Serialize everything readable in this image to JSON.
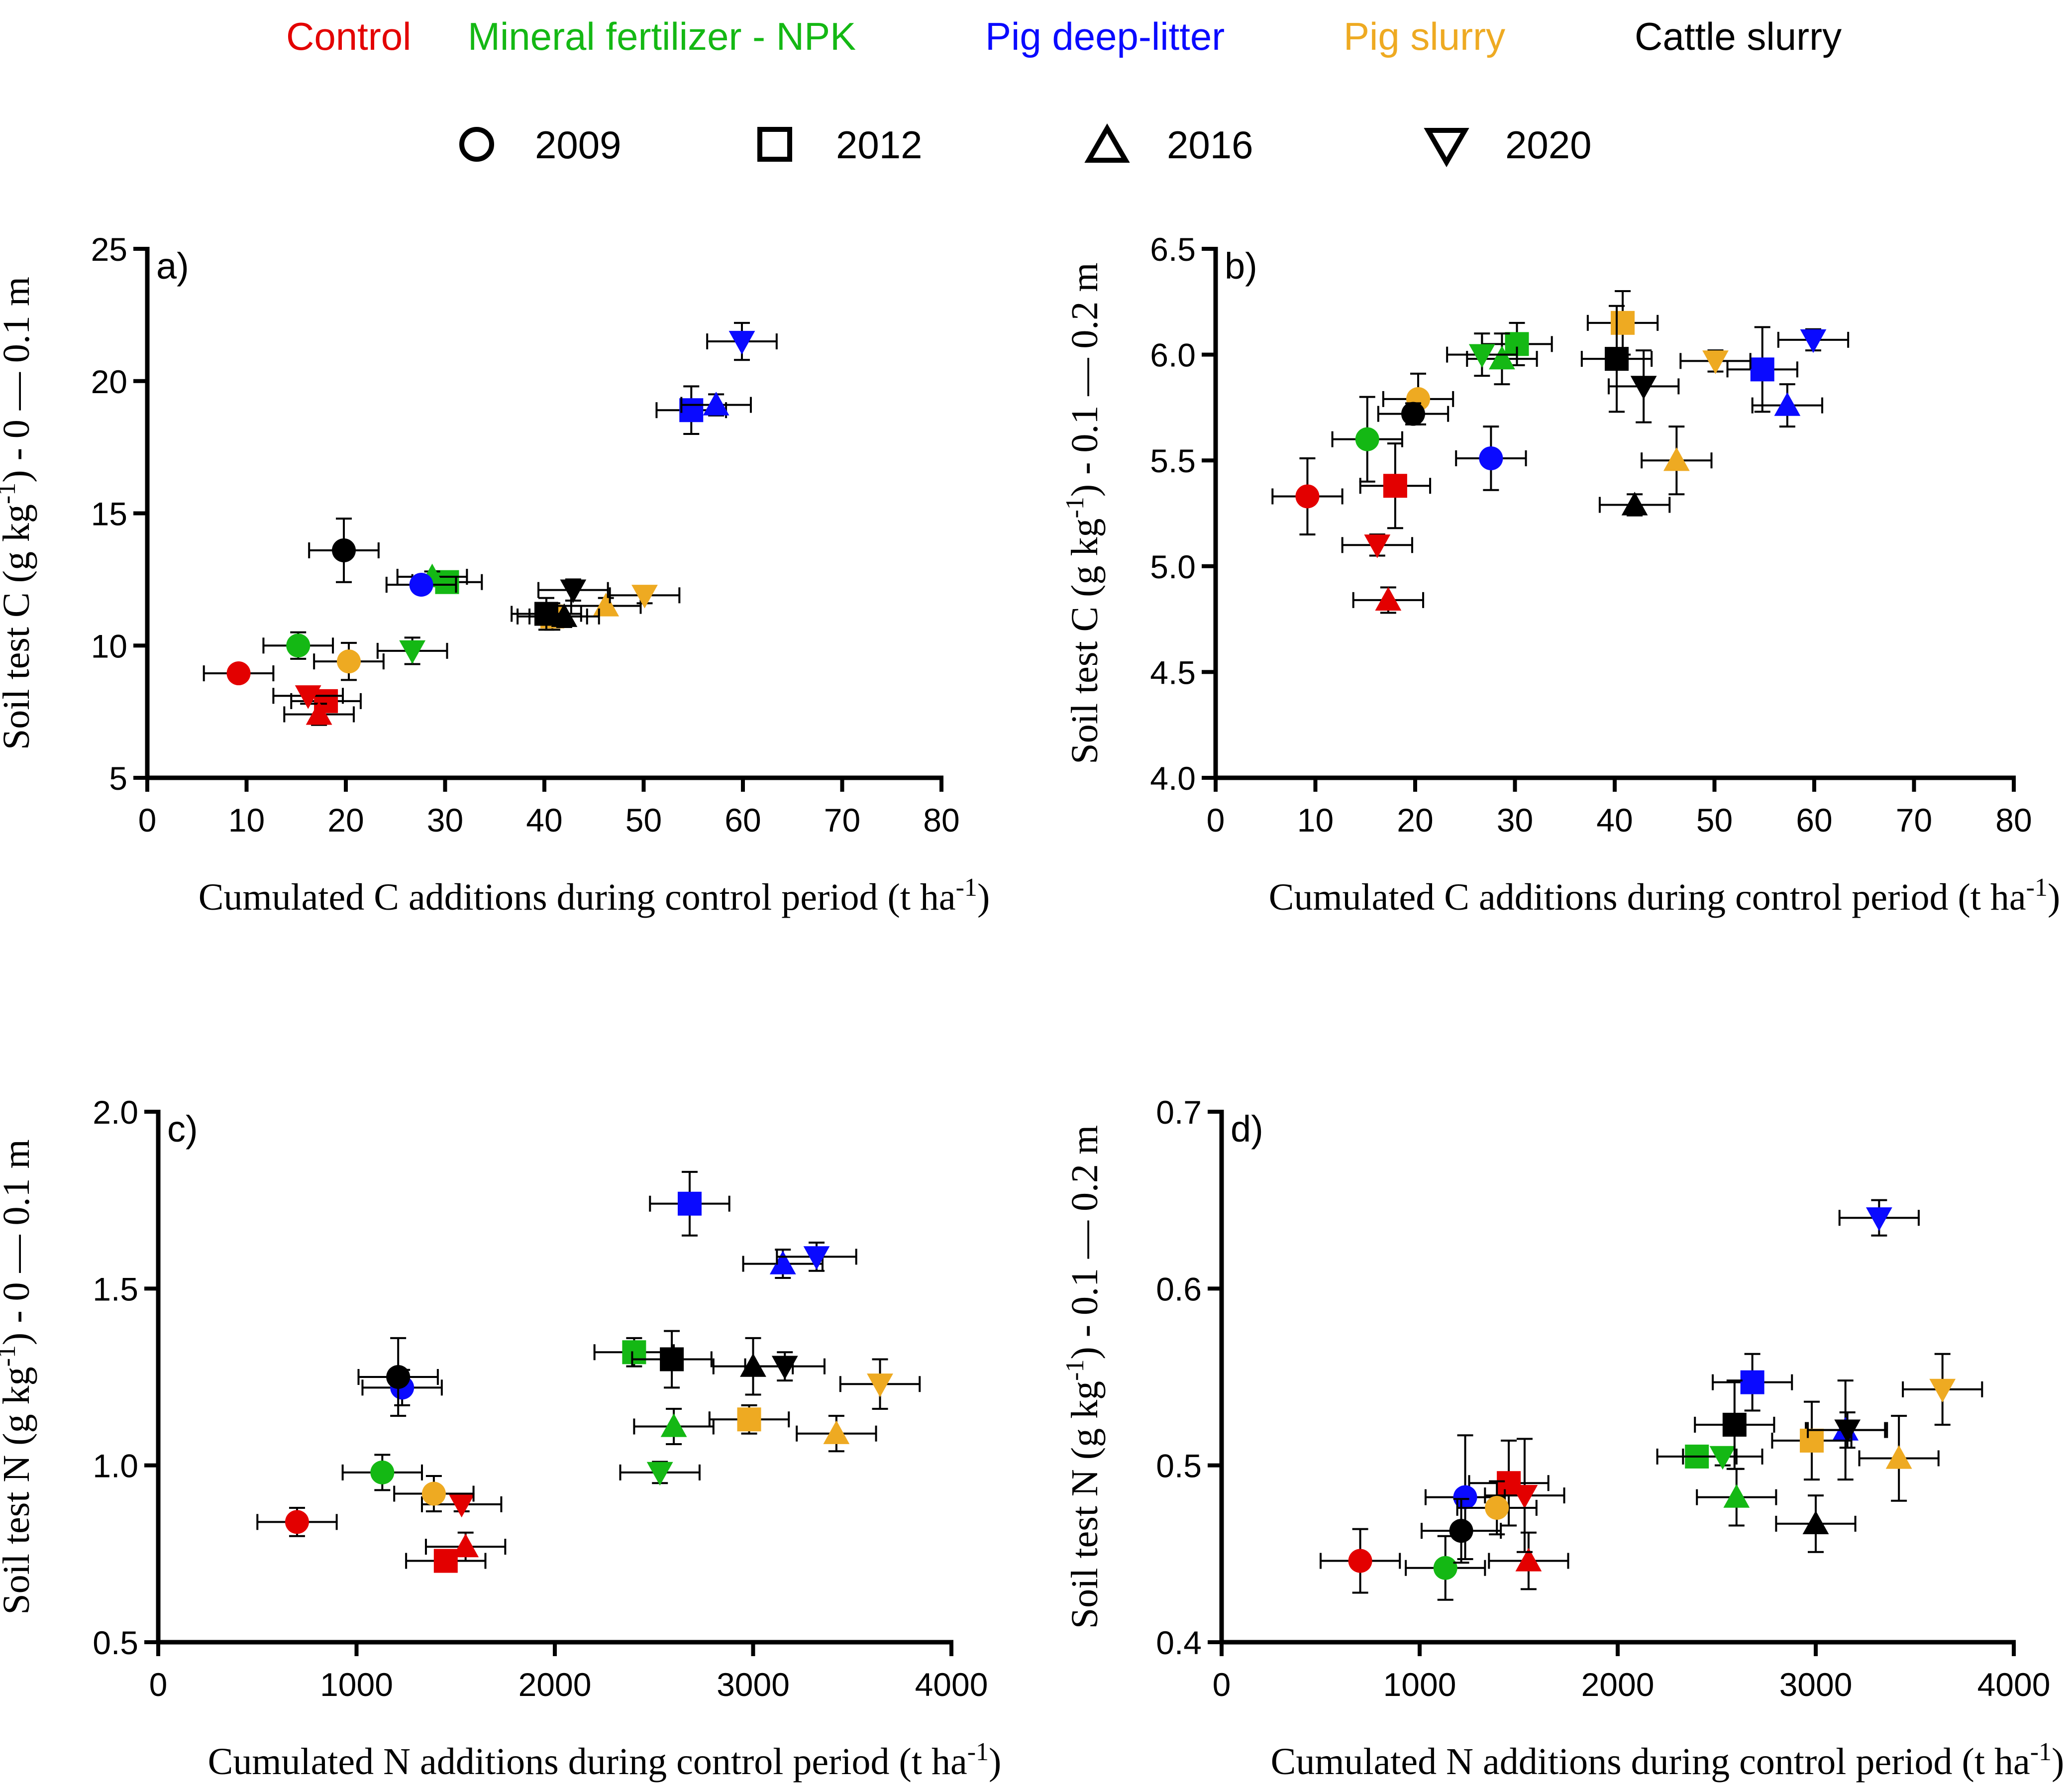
{
  "legend": {
    "treatments": [
      {
        "key": "control",
        "label": "Control",
        "color": "#e30000"
      },
      {
        "key": "npk",
        "label": "Mineral fertilizer - NPK",
        "color": "#14b814"
      },
      {
        "key": "pdl",
        "label": "Pig deep-litter",
        "color": "#0a0aff"
      },
      {
        "key": "ps",
        "label": "Pig slurry",
        "color": "#eeaa22"
      },
      {
        "key": "cs",
        "label": "Cattle slurry",
        "color": "#000000"
      }
    ],
    "years": [
      {
        "label": "2009",
        "marker": "circle-icon"
      },
      {
        "label": "2012",
        "marker": "square-icon"
      },
      {
        "label": "2016",
        "marker": "triangle-up-icon"
      },
      {
        "label": "2020",
        "marker": "triangle-down-icon"
      }
    ]
  },
  "chart_data": [
    {
      "panel": "a)",
      "type": "scatter",
      "xlabel": "Cumulated C additions during control period (t ha⁻¹)",
      "ylabel": "Soil test C (g kg⁻¹) - 0 — 0.1 m",
      "xlim": [
        0,
        80
      ],
      "ylim": [
        5,
        25
      ],
      "xticks": [
        0,
        10,
        20,
        30,
        40,
        50,
        60,
        70,
        80
      ],
      "yticks": [
        5,
        10,
        15,
        20,
        25
      ],
      "ytick_labels": [
        "5",
        "10",
        "15",
        "20",
        "25"
      ],
      "points": [
        {
          "t": "control",
          "y": "2009",
          "x": 9.2,
          "v": 8.95,
          "xe": 3.5,
          "ye": 0.2
        },
        {
          "t": "control",
          "y": "2012",
          "x": 18.0,
          "v": 7.9,
          "xe": 3.5,
          "ye": 0.3
        },
        {
          "t": "control",
          "y": "2016",
          "x": 17.3,
          "v": 7.4,
          "xe": 3.5,
          "ye": 0.4
        },
        {
          "t": "control",
          "y": "2020",
          "x": 16.2,
          "v": 8.1,
          "xe": 3.5,
          "ye": 0.3
        },
        {
          "t": "npk",
          "y": "2009",
          "x": 15.2,
          "v": 10.0,
          "xe": 3.5,
          "ye": 0.5
        },
        {
          "t": "npk",
          "y": "2012",
          "x": 30.2,
          "v": 12.4,
          "xe": 3.5,
          "ye": 0.3
        },
        {
          "t": "npk",
          "y": "2016",
          "x": 28.7,
          "v": 12.6,
          "xe": 3.5,
          "ye": 0.2
        },
        {
          "t": "npk",
          "y": "2020",
          "x": 26.7,
          "v": 9.8,
          "xe": 3.5,
          "ye": 0.5
        },
        {
          "t": "pdl",
          "y": "2009",
          "x": 27.6,
          "v": 12.3,
          "xe": 3.5,
          "ye": 0.3
        },
        {
          "t": "pdl",
          "y": "2012",
          "x": 54.8,
          "v": 18.9,
          "xe": 3.5,
          "ye": 0.9
        },
        {
          "t": "pdl",
          "y": "2016",
          "x": 57.3,
          "v": 19.1,
          "xe": 3.5,
          "ye": 0.4
        },
        {
          "t": "pdl",
          "y": "2020",
          "x": 59.9,
          "v": 21.5,
          "xe": 3.5,
          "ye": 0.7
        },
        {
          "t": "ps",
          "y": "2009",
          "x": 20.3,
          "v": 9.4,
          "xe": 3.5,
          "ye": 0.7
        },
        {
          "t": "ps",
          "y": "2012",
          "x": 40.8,
          "v": 11.1,
          "xe": 3.5,
          "ye": 0.5
        },
        {
          "t": "ps",
          "y": "2016",
          "x": 46.2,
          "v": 11.5,
          "xe": 3.5,
          "ye": 0.3
        },
        {
          "t": "ps",
          "y": "2020",
          "x": 50.1,
          "v": 11.9,
          "xe": 3.5,
          "ye": 0.3
        },
        {
          "t": "cs",
          "y": "2009",
          "x": 19.8,
          "v": 13.6,
          "xe": 3.5,
          "ye": 1.2
        },
        {
          "t": "cs",
          "y": "2012",
          "x": 40.2,
          "v": 11.2,
          "xe": 3.5,
          "ye": 0.6
        },
        {
          "t": "cs",
          "y": "2016",
          "x": 42.0,
          "v": 11.1,
          "xe": 3.5,
          "ye": 0.4
        },
        {
          "t": "cs",
          "y": "2020",
          "x": 42.9,
          "v": 12.1,
          "xe": 3.5,
          "ye": 0.4
        }
      ]
    },
    {
      "panel": "b)",
      "type": "scatter",
      "xlabel": "Cumulated C additions during control period (t ha⁻¹)",
      "ylabel": "Soil test C (g kg⁻¹) - 0.1 — 0.2 m",
      "xlim": [
        0,
        80
      ],
      "ylim": [
        4.0,
        6.5
      ],
      "xticks": [
        0,
        10,
        20,
        30,
        40,
        50,
        60,
        70,
        80
      ],
      "yticks": [
        4.0,
        4.5,
        5.0,
        5.5,
        6.0,
        6.5
      ],
      "ytick_labels": [
        "4.0",
        "4.5",
        "5.0",
        "5.5",
        "6.0",
        "6.5"
      ],
      "points": [
        {
          "t": "control",
          "y": "2009",
          "x": 9.2,
          "v": 5.33,
          "xe": 3.5,
          "ye": 0.18
        },
        {
          "t": "control",
          "y": "2012",
          "x": 18.0,
          "v": 5.38,
          "xe": 3.5,
          "ye": 0.2
        },
        {
          "t": "control",
          "y": "2016",
          "x": 17.3,
          "v": 4.84,
          "xe": 3.5,
          "ye": 0.06
        },
        {
          "t": "control",
          "y": "2020",
          "x": 16.2,
          "v": 5.1,
          "xe": 3.5,
          "ye": 0.05
        },
        {
          "t": "npk",
          "y": "2009",
          "x": 15.2,
          "v": 5.6,
          "xe": 3.5,
          "ye": 0.2
        },
        {
          "t": "npk",
          "y": "2012",
          "x": 30.2,
          "v": 6.05,
          "xe": 3.5,
          "ye": 0.1
        },
        {
          "t": "npk",
          "y": "2016",
          "x": 28.7,
          "v": 5.98,
          "xe": 3.5,
          "ye": 0.12
        },
        {
          "t": "npk",
          "y": "2020",
          "x": 26.7,
          "v": 6.0,
          "xe": 3.5,
          "ye": 0.1
        },
        {
          "t": "pdl",
          "y": "2009",
          "x": 27.6,
          "v": 5.51,
          "xe": 3.5,
          "ye": 0.15
        },
        {
          "t": "pdl",
          "y": "2012",
          "x": 54.8,
          "v": 5.93,
          "xe": 3.5,
          "ye": 0.2
        },
        {
          "t": "pdl",
          "y": "2016",
          "x": 57.3,
          "v": 5.76,
          "xe": 3.5,
          "ye": 0.1
        },
        {
          "t": "pdl",
          "y": "2020",
          "x": 59.9,
          "v": 6.07,
          "xe": 3.5,
          "ye": 0.05
        },
        {
          "t": "ps",
          "y": "2009",
          "x": 20.3,
          "v": 5.79,
          "xe": 3.5,
          "ye": 0.12
        },
        {
          "t": "ps",
          "y": "2012",
          "x": 40.8,
          "v": 6.15,
          "xe": 3.5,
          "ye": 0.15
        },
        {
          "t": "ps",
          "y": "2016",
          "x": 46.2,
          "v": 5.5,
          "xe": 3.5,
          "ye": 0.16
        },
        {
          "t": "ps",
          "y": "2020",
          "x": 50.1,
          "v": 5.97,
          "xe": 3.5,
          "ye": 0.05
        },
        {
          "t": "cs",
          "y": "2009",
          "x": 19.8,
          "v": 5.72,
          "xe": 3.5,
          "ye": 0.05
        },
        {
          "t": "cs",
          "y": "2012",
          "x": 40.2,
          "v": 5.98,
          "xe": 3.5,
          "ye": 0.25
        },
        {
          "t": "cs",
          "y": "2016",
          "x": 42.0,
          "v": 5.29,
          "xe": 3.5,
          "ye": 0.05
        },
        {
          "t": "cs",
          "y": "2020",
          "x": 42.9,
          "v": 5.85,
          "xe": 3.5,
          "ye": 0.17
        }
      ]
    },
    {
      "panel": "c)",
      "type": "scatter",
      "xlabel": "Cumulated N additions during control period (t ha⁻¹)",
      "ylabel": "Soil test N (g kg⁻¹) - 0 — 0.1 m",
      "xlim": [
        0,
        4000
      ],
      "ylim": [
        0.5,
        2.0
      ],
      "xticks": [
        0,
        1000,
        2000,
        3000,
        4000
      ],
      "yticks": [
        0.5,
        1.0,
        1.5,
        2.0
      ],
      "ytick_labels": [
        "0.5",
        "1.0",
        "1.5",
        "2.0"
      ],
      "points": [
        {
          "t": "control",
          "y": "2009",
          "x": 700,
          "v": 0.84,
          "xe": 200,
          "ye": 0.04
        },
        {
          "t": "control",
          "y": "2012",
          "x": 1450,
          "v": 0.73,
          "xe": 200,
          "ye": 0.03
        },
        {
          "t": "control",
          "y": "2016",
          "x": 1550,
          "v": 0.77,
          "xe": 200,
          "ye": 0.04
        },
        {
          "t": "control",
          "y": "2020",
          "x": 1530,
          "v": 0.89,
          "xe": 200,
          "ye": 0.02
        },
        {
          "t": "npk",
          "y": "2009",
          "x": 1130,
          "v": 0.98,
          "xe": 200,
          "ye": 0.05
        },
        {
          "t": "npk",
          "y": "2012",
          "x": 2400,
          "v": 1.32,
          "xe": 200,
          "ye": 0.04
        },
        {
          "t": "npk",
          "y": "2016",
          "x": 2600,
          "v": 1.11,
          "xe": 200,
          "ye": 0.05
        },
        {
          "t": "npk",
          "y": "2020",
          "x": 2530,
          "v": 0.98,
          "xe": 200,
          "ye": 0.03
        },
        {
          "t": "pdl",
          "y": "2009",
          "x": 1230,
          "v": 1.22,
          "xe": 200,
          "ye": 0.05
        },
        {
          "t": "pdl",
          "y": "2012",
          "x": 2680,
          "v": 1.74,
          "xe": 200,
          "ye": 0.09
        },
        {
          "t": "pdl",
          "y": "2016",
          "x": 3150,
          "v": 1.57,
          "xe": 200,
          "ye": 0.04
        },
        {
          "t": "pdl",
          "y": "2020",
          "x": 3320,
          "v": 1.59,
          "xe": 200,
          "ye": 0.04
        },
        {
          "t": "ps",
          "y": "2009",
          "x": 1390,
          "v": 0.92,
          "xe": 200,
          "ye": 0.05
        },
        {
          "t": "ps",
          "y": "2012",
          "x": 2980,
          "v": 1.13,
          "xe": 200,
          "ye": 0.04
        },
        {
          "t": "ps",
          "y": "2016",
          "x": 3420,
          "v": 1.09,
          "xe": 200,
          "ye": 0.05
        },
        {
          "t": "ps",
          "y": "2020",
          "x": 3640,
          "v": 1.23,
          "xe": 200,
          "ye": 0.07
        },
        {
          "t": "cs",
          "y": "2009",
          "x": 1210,
          "v": 1.25,
          "xe": 200,
          "ye": 0.11
        },
        {
          "t": "cs",
          "y": "2012",
          "x": 2590,
          "v": 1.3,
          "xe": 200,
          "ye": 0.08
        },
        {
          "t": "cs",
          "y": "2016",
          "x": 3000,
          "v": 1.28,
          "xe": 200,
          "ye": 0.08
        },
        {
          "t": "cs",
          "y": "2020",
          "x": 3160,
          "v": 1.28,
          "xe": 200,
          "ye": 0.04
        }
      ]
    },
    {
      "panel": "d)",
      "type": "scatter",
      "xlabel": "Cumulated N additions during control period (t ha⁻¹)",
      "ylabel": "Soil test N (g kg⁻¹) - 0.1 — 0.2 m",
      "xlim": [
        0,
        4000
      ],
      "ylim": [
        0.4,
        0.7
      ],
      "xticks": [
        0,
        1000,
        2000,
        3000,
        4000
      ],
      "yticks": [
        0.4,
        0.5,
        0.6,
        0.7
      ],
      "ytick_labels": [
        "0.4",
        "0.5",
        "0.6",
        "0.7"
      ],
      "points": [
        {
          "t": "control",
          "y": "2009",
          "x": 700,
          "v": 0.446,
          "xe": 200,
          "ye": 0.018
        },
        {
          "t": "control",
          "y": "2012",
          "x": 1450,
          "v": 0.49,
          "xe": 200,
          "ye": 0.024
        },
        {
          "t": "control",
          "y": "2016",
          "x": 1550,
          "v": 0.446,
          "xe": 200,
          "ye": 0.016
        },
        {
          "t": "control",
          "y": "2020",
          "x": 1530,
          "v": 0.483,
          "xe": 200,
          "ye": 0.032
        },
        {
          "t": "npk",
          "y": "2009",
          "x": 1130,
          "v": 0.442,
          "xe": 200,
          "ye": 0.018
        },
        {
          "t": "npk",
          "y": "2012",
          "x": 2400,
          "v": 0.505,
          "xe": 200,
          "ye": 0.006
        },
        {
          "t": "npk",
          "y": "2016",
          "x": 2600,
          "v": 0.482,
          "xe": 200,
          "ye": 0.016
        },
        {
          "t": "npk",
          "y": "2020",
          "x": 2530,
          "v": 0.505,
          "xe": 200,
          "ye": 0.005
        },
        {
          "t": "pdl",
          "y": "2009",
          "x": 1230,
          "v": 0.482,
          "xe": 200,
          "ye": 0.035
        },
        {
          "t": "pdl",
          "y": "2012",
          "x": 2680,
          "v": 0.547,
          "xe": 200,
          "ye": 0.016
        },
        {
          "t": "pdl",
          "y": "2016",
          "x": 3150,
          "v": 0.52,
          "xe": 200,
          "ye": 0.028
        },
        {
          "t": "pdl",
          "y": "2020",
          "x": 3320,
          "v": 0.64,
          "xe": 200,
          "ye": 0.01
        },
        {
          "t": "ps",
          "y": "2009",
          "x": 1390,
          "v": 0.476,
          "xe": 200,
          "ye": 0.015
        },
        {
          "t": "ps",
          "y": "2012",
          "x": 2980,
          "v": 0.514,
          "xe": 200,
          "ye": 0.022
        },
        {
          "t": "ps",
          "y": "2016",
          "x": 3420,
          "v": 0.504,
          "xe": 200,
          "ye": 0.024
        },
        {
          "t": "ps",
          "y": "2020",
          "x": 3640,
          "v": 0.543,
          "xe": 200,
          "ye": 0.02
        },
        {
          "t": "cs",
          "y": "2009",
          "x": 1210,
          "v": 0.463,
          "xe": 200,
          "ye": 0.018
        },
        {
          "t": "cs",
          "y": "2012",
          "x": 2590,
          "v": 0.523,
          "xe": 200,
          "ye": 0.025
        },
        {
          "t": "cs",
          "y": "2016",
          "x": 3000,
          "v": 0.467,
          "xe": 200,
          "ye": 0.016
        },
        {
          "t": "cs",
          "y": "2020",
          "x": 3160,
          "v": 0.52,
          "xe": 200,
          "ye": 0.01
        }
      ]
    }
  ]
}
